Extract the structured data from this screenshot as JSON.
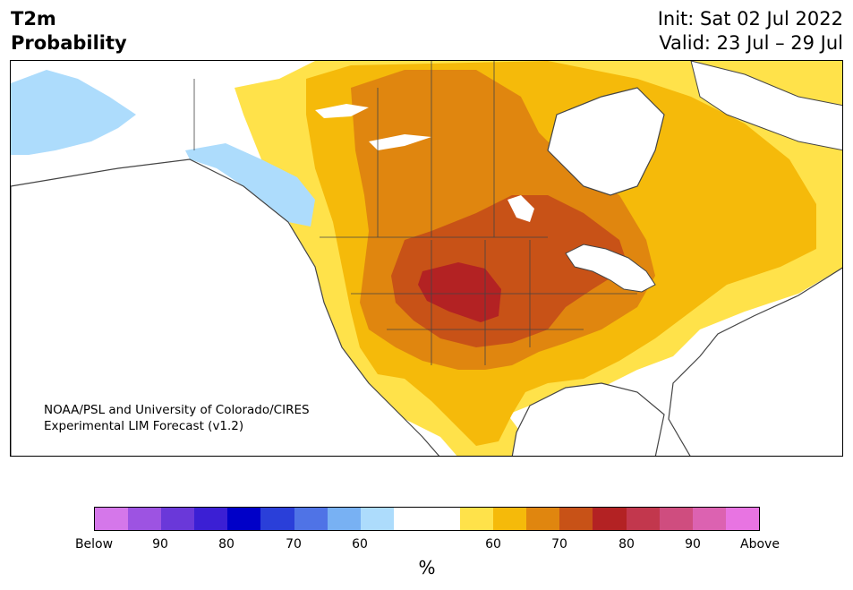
{
  "header": {
    "title_line1": "T2m",
    "title_line2": "Probability",
    "init_line": "Init: Sat 02 Jul 2022",
    "valid_line": "Valid: 23 Jul – 29 Jul"
  },
  "credit": {
    "line1": "NOAA/PSL and University of Colorado/CIRES",
    "line2": "Experimental LIM Forecast (v1.2)"
  },
  "colorbar": {
    "colors": [
      "#d577ea",
      "#9d53e2",
      "#6a38d9",
      "#3b1fd4",
      "#0000c8",
      "#2a3fd9",
      "#4f73e6",
      "#78b1f3",
      "#addcfc",
      "#ffffff",
      "#ffffff",
      "#ffe24a",
      "#f5ba0a",
      "#e0860f",
      "#c85217",
      "#b32223",
      "#c2374d",
      "#cf4d7f",
      "#dc62b1",
      "#e874e2"
    ],
    "tick_labels": [
      "Below",
      "90",
      "80",
      "70",
      "60",
      "60",
      "70",
      "80",
      "90",
      "Above"
    ],
    "unit": "%"
  },
  "map": {
    "colors": {
      "ocean": "#ffffff",
      "land": "#ffffff",
      "below_60_70": "#addcfc",
      "above_50_60": "#ffe24a",
      "above_60_70": "#f5ba0a",
      "above_70_80": "#e0860f",
      "above_80_90": "#c85217",
      "above_90": "#b32223",
      "border": "#444444"
    }
  }
}
